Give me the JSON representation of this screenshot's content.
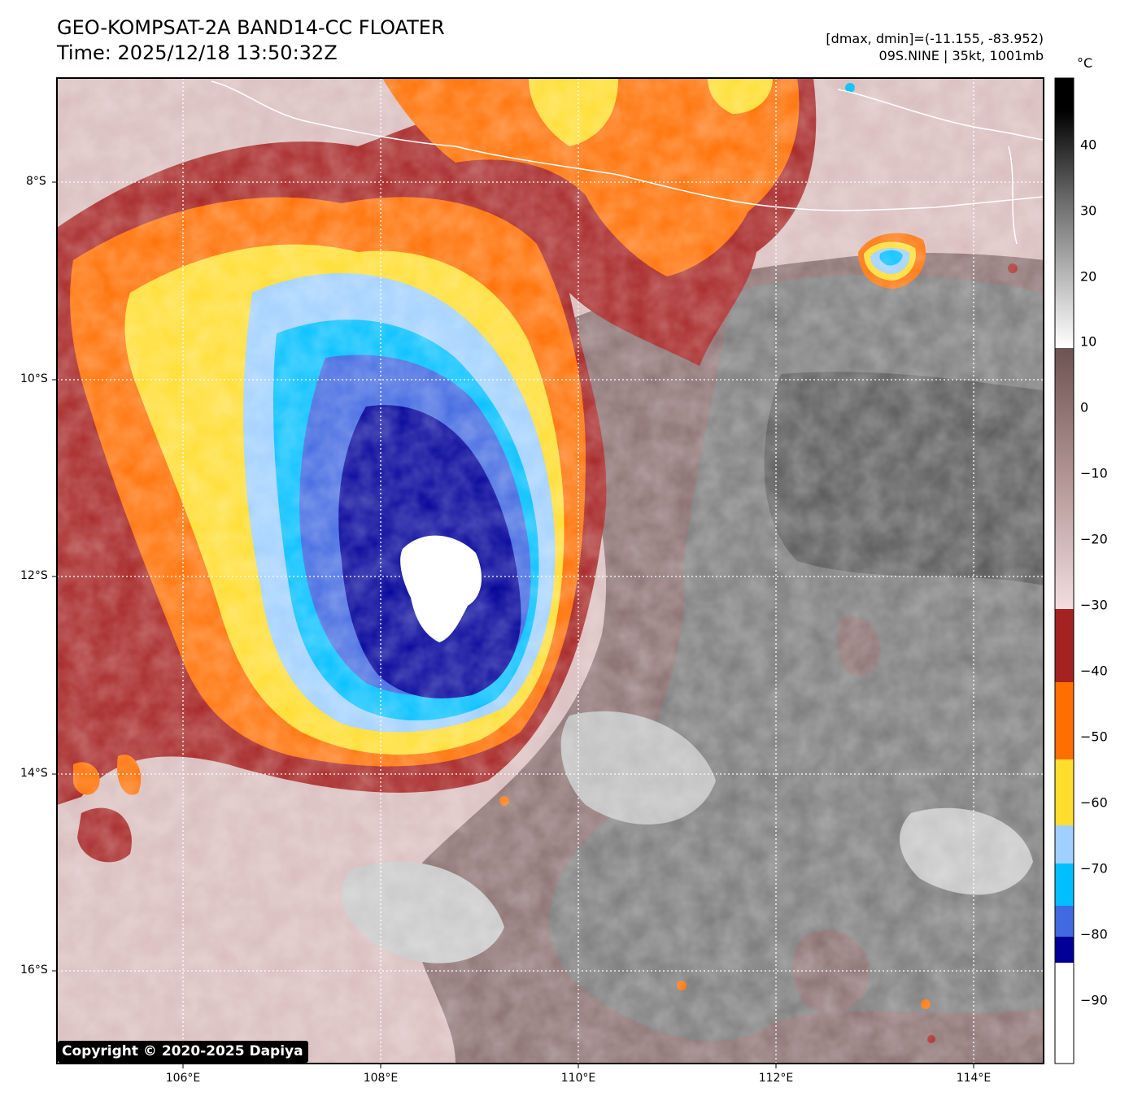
{
  "title": {
    "line1": "GEO-KOMPSAT-2A BAND14-CC FLOATER",
    "line2": "Time: 2025/12/18 13:50:32Z"
  },
  "info": {
    "dmax_dmin": "[dmax, dmin]=(-11.155, -83.952)",
    "storm": "09S.NINE | 35kt, 1001mb"
  },
  "map": {
    "lat_labels": [
      "8°S",
      "10°S",
      "12°S",
      "14°S",
      "16°S"
    ],
    "lon_labels": [
      "106°E",
      "108°E",
      "110°E",
      "112°E",
      "114°E"
    ]
  },
  "colorbar": {
    "unit": "°C",
    "ticks": [
      "40",
      "30",
      "20",
      "10",
      "0",
      "−10",
      "−20",
      "−30",
      "−40",
      "−50",
      "−60",
      "−70",
      "−80",
      "−90"
    ],
    "colors": {
      "black": "#000000",
      "white": "#ffffff",
      "brown_light": "#f2dede",
      "brown_dark": "#6e5353",
      "red": "#a52222",
      "orange": "#ff6e00",
      "yellow": "#ffdd2e",
      "light_blue": "#a0d0ff",
      "sky_blue": "#00bfff",
      "royal_blue": "#4169e1",
      "navy": "#000099"
    }
  },
  "copyright": "Copyright © 2020-2025 Dapiya"
}
